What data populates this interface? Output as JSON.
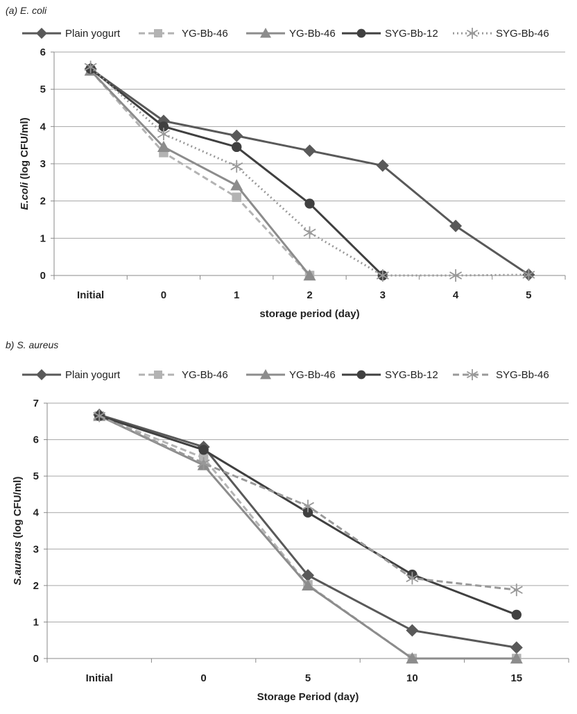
{
  "chart_data": [
    {
      "type": "line",
      "title": "(a) E. coli",
      "xlabel": "storage period (day)",
      "ylabel_italic": "E.coli",
      "ylabel_rest": " (log CFU/ml)",
      "categories": [
        "Initial",
        "0",
        "1",
        "2",
        "3",
        "4",
        "5"
      ],
      "ylim": [
        0,
        6
      ],
      "yticks": [
        "0",
        "1",
        "2",
        "3",
        "4",
        "5",
        "6"
      ],
      "grid": true,
      "legend_position": "top",
      "series": [
        {
          "name": "Plain yogurt",
          "color": "#595959",
          "dash": "solid",
          "marker": "diamond",
          "values": [
            5.55,
            4.15,
            3.75,
            3.35,
            2.95,
            1.33,
            0.02
          ]
        },
        {
          "name": "YG-Bb-46",
          "color": "#b3b3b3",
          "dash": "dashed",
          "marker": "square",
          "values": [
            5.5,
            3.3,
            2.1,
            0.0,
            null,
            null,
            null
          ]
        },
        {
          "name": "YG-Bb-46",
          "color": "#8c8c8c",
          "dash": "solid",
          "marker": "triangle",
          "values": [
            5.5,
            3.45,
            2.42,
            0.0,
            null,
            null,
            null
          ]
        },
        {
          "name": "SYG-Bb-12",
          "color": "#404040",
          "dash": "solid",
          "marker": "circle",
          "values": [
            5.55,
            4.0,
            3.45,
            1.93,
            0.0,
            null,
            null
          ]
        },
        {
          "name": "SYG-Bb-46",
          "color": "#999999",
          "dash": "dotted",
          "marker": "star",
          "values": [
            5.6,
            3.8,
            2.93,
            1.15,
            0.0,
            0.0,
            0.02
          ]
        }
      ]
    },
    {
      "type": "line",
      "title": "b) S. aureus",
      "xlabel": "Storage Period (day)",
      "ylabel_italic": "S.auraus",
      "ylabel_rest": " (log CFU/ml)",
      "categories": [
        "Initial",
        "0",
        "5",
        "10",
        "15"
      ],
      "ylim": [
        0,
        7
      ],
      "yticks": [
        "0",
        "1",
        "2",
        "3",
        "4",
        "5",
        "6",
        "7"
      ],
      "grid": true,
      "legend_position": "top",
      "series": [
        {
          "name": "Plain yogurt",
          "color": "#595959",
          "dash": "solid",
          "marker": "diamond",
          "values": [
            6.68,
            5.8,
            2.28,
            0.77,
            0.3
          ]
        },
        {
          "name": "YG-Bb-46",
          "color": "#b3b3b3",
          "dash": "dashed",
          "marker": "square",
          "values": [
            6.65,
            5.5,
            2.02,
            0.0,
            0.0
          ]
        },
        {
          "name": "YG-Bb-46",
          "color": "#8c8c8c",
          "dash": "solid",
          "marker": "triangle",
          "values": [
            6.65,
            5.3,
            2.0,
            0.0,
            0.0
          ]
        },
        {
          "name": "SYG-Bb-12",
          "color": "#404040",
          "dash": "solid",
          "marker": "circle",
          "values": [
            6.65,
            5.72,
            4.0,
            2.3,
            1.2
          ]
        },
        {
          "name": "SYG-Bb-46",
          "color": "#999999",
          "dash": "dashed",
          "marker": "star",
          "values": [
            6.65,
            5.35,
            4.18,
            2.2,
            1.88
          ]
        }
      ]
    }
  ]
}
